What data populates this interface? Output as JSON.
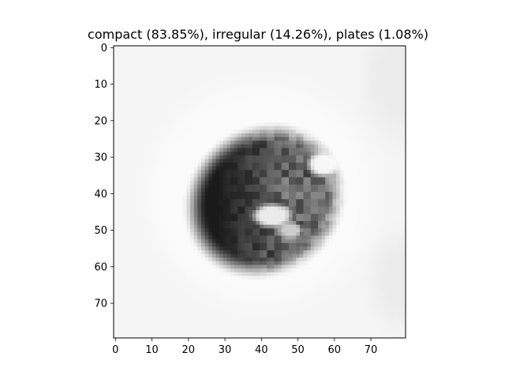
{
  "chart_data": {
    "type": "heatmap",
    "title": "compact (83.85%), irregular (14.26%), plates (1.08%)",
    "xlabel": "",
    "ylabel": "",
    "xlim": [
      -0.5,
      79.5
    ],
    "ylim": [
      79.5,
      -0.5
    ],
    "image_size": [
      80,
      80
    ],
    "colormap": "grayscale",
    "grid": false,
    "x_ticks": [
      0,
      10,
      20,
      30,
      40,
      50,
      60,
      70
    ],
    "y_ticks": [
      0,
      10,
      20,
      30,
      40,
      50,
      60,
      70
    ],
    "x_tick_labels": [
      "0",
      "10",
      "20",
      "30",
      "40",
      "50",
      "60",
      "70"
    ],
    "y_tick_labels": [
      "0",
      "10",
      "20",
      "30",
      "40",
      "50",
      "60",
      "70"
    ],
    "image_features": {
      "background_level": 0.96,
      "halo": {
        "center": [
          40,
          40
        ],
        "radii": [
          31,
          30
        ],
        "level": 0.985
      },
      "particle": {
        "center": [
          41,
          42
        ],
        "radii": [
          20,
          18
        ],
        "rotation_deg": -35,
        "dark_level": 0.1,
        "dark_edge_x": 28
      },
      "highlights": [
        {
          "center": [
            43,
            46
          ],
          "radii": [
            5,
            3
          ],
          "level": 0.92
        },
        {
          "center": [
            57,
            32
          ],
          "radii": [
            4,
            3
          ],
          "level": 0.96
        },
        {
          "center": [
            48,
            50
          ],
          "radii": [
            3,
            2
          ],
          "level": 0.8
        }
      ],
      "corner_shading": [
        {
          "center": [
            79,
            8
          ],
          "radii": [
            10,
            16
          ],
          "level": 0.82
        },
        {
          "center": [
            79,
            64
          ],
          "radii": [
            8,
            12
          ],
          "level": 0.82
        }
      ]
    }
  }
}
